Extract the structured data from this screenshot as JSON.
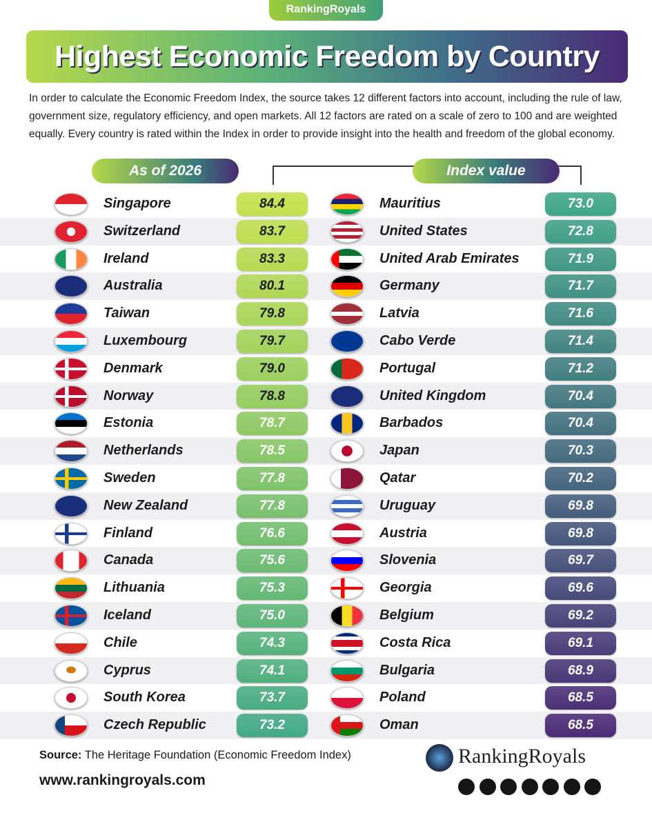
{
  "header": {
    "brand": "RankingRoyals",
    "title": "Highest Economic Freedom by Country",
    "intro": "In order to calculate the Economic Freedom Index, the source takes 12 different factors into account, including the rule of law, government size, regulatory efficiency, and open markets. All 12 factors are rated on a scale of zero to 100 and are weighted equally. Every country is rated within the Index in order to provide insight into the health and freedom of the global economy."
  },
  "labels": {
    "left": "As of 2026",
    "right": "Index value"
  },
  "left": [
    {
      "country": "Singapore",
      "value": "84.4"
    },
    {
      "country": "Switzerland",
      "value": "83.7"
    },
    {
      "country": "Ireland",
      "value": "83.3"
    },
    {
      "country": "Australia",
      "value": "80.1"
    },
    {
      "country": "Taiwan",
      "value": "79.8"
    },
    {
      "country": "Luxembourg",
      "value": "79.7"
    },
    {
      "country": "Denmark",
      "value": "79.0"
    },
    {
      "country": "Norway",
      "value": "78.8"
    },
    {
      "country": "Estonia",
      "value": "78.7"
    },
    {
      "country": "Netherlands",
      "value": "78.5"
    },
    {
      "country": "Sweden",
      "value": "77.8"
    },
    {
      "country": "New Zealand",
      "value": "77.8"
    },
    {
      "country": "Finland",
      "value": "76.6"
    },
    {
      "country": "Canada",
      "value": "75.6"
    },
    {
      "country": "Lithuania",
      "value": "75.3"
    },
    {
      "country": "Iceland",
      "value": "75.0"
    },
    {
      "country": "Chile",
      "value": "74.3"
    },
    {
      "country": "Cyprus",
      "value": "74.1"
    },
    {
      "country": "South Korea",
      "value": "73.7"
    },
    {
      "country": "Czech Republic",
      "value": "73.2"
    }
  ],
  "right": [
    {
      "country": "Mauritius",
      "value": "73.0"
    },
    {
      "country": "United States",
      "value": "72.8"
    },
    {
      "country": "United Arab Emirates",
      "value": "71.9"
    },
    {
      "country": "Germany",
      "value": "71.7"
    },
    {
      "country": "Latvia",
      "value": "71.6"
    },
    {
      "country": "Cabo Verde",
      "value": "71.4"
    },
    {
      "country": "Portugal",
      "value": "71.2"
    },
    {
      "country": "United Kingdom",
      "value": "70.4"
    },
    {
      "country": "Barbados",
      "value": "70.4"
    },
    {
      "country": "Japan",
      "value": "70.3"
    },
    {
      "country": "Qatar",
      "value": "70.2"
    },
    {
      "country": "Uruguay",
      "value": "69.8"
    },
    {
      "country": "Austria",
      "value": "69.8"
    },
    {
      "country": "Slovenia",
      "value": "69.7"
    },
    {
      "country": "Georgia",
      "value": "69.6"
    },
    {
      "country": "Belgium",
      "value": "69.2"
    },
    {
      "country": "Costa Rica",
      "value": "69.1"
    },
    {
      "country": "Bulgaria",
      "value": "68.9"
    },
    {
      "country": "Poland",
      "value": "68.5"
    },
    {
      "country": "Oman",
      "value": "68.5"
    }
  ],
  "footer": {
    "source_label": "Source:",
    "source": "The Heritage Foundation (Economic Freedom Index)",
    "url": "www.rankingroyals.com",
    "logo": "RankingRoyals"
  }
}
